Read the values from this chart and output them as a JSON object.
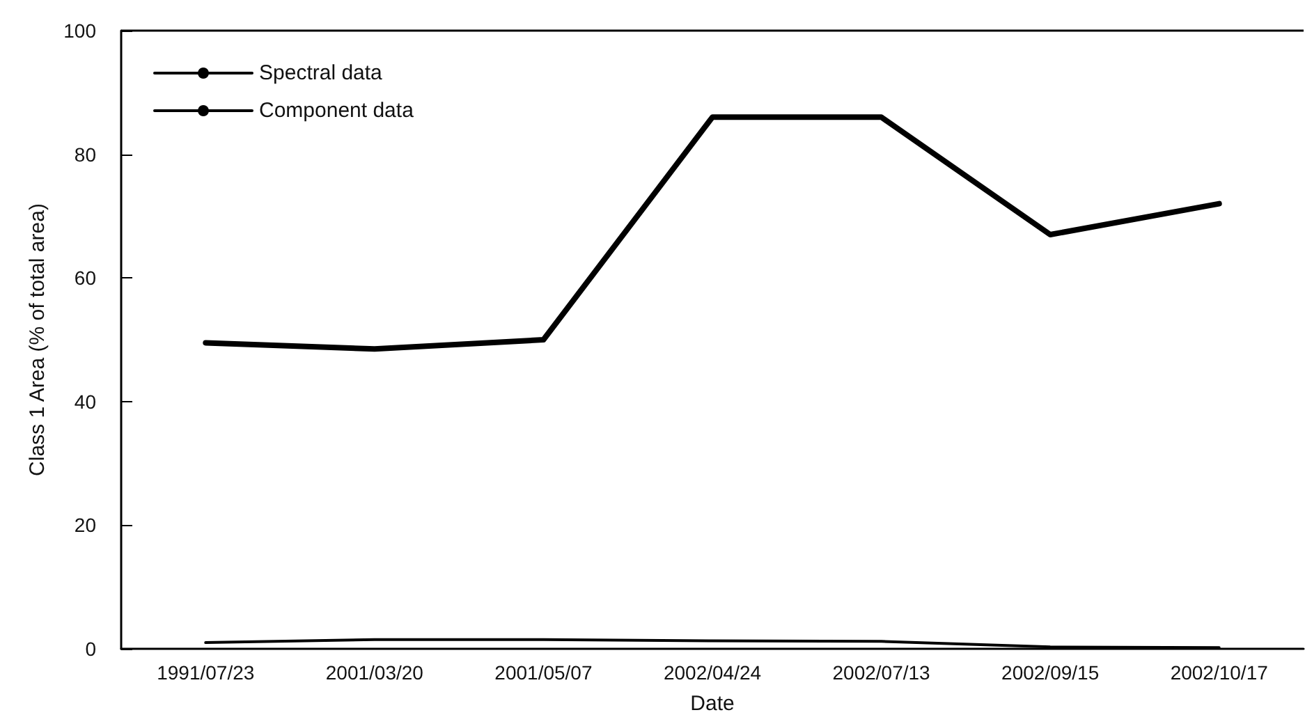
{
  "chart_data": {
    "type": "line",
    "xlabel": "Date",
    "ylabel": "Class 1 Area (% of total area)",
    "categories": [
      "1991/07/23",
      "2001/03/20",
      "2001/05/07",
      "2002/04/24",
      "2002/07/13",
      "2002/09/15",
      "2002/10/17"
    ],
    "series": [
      {
        "name": "Spectral data",
        "color": "#000000",
        "values": [
          49.5,
          48.5,
          50,
          86,
          86,
          67,
          72
        ]
      },
      {
        "name": "Component data",
        "color": "#000000",
        "values": [
          1,
          1.5,
          1.5,
          1.3,
          1.2,
          0.3,
          0.2
        ]
      }
    ],
    "ylim": [
      0,
      100
    ],
    "yticks": [
      0,
      20,
      40,
      60,
      80,
      100
    ],
    "grid": false,
    "legend": "top left",
    "marker": "none",
    "line_style": "solid"
  }
}
